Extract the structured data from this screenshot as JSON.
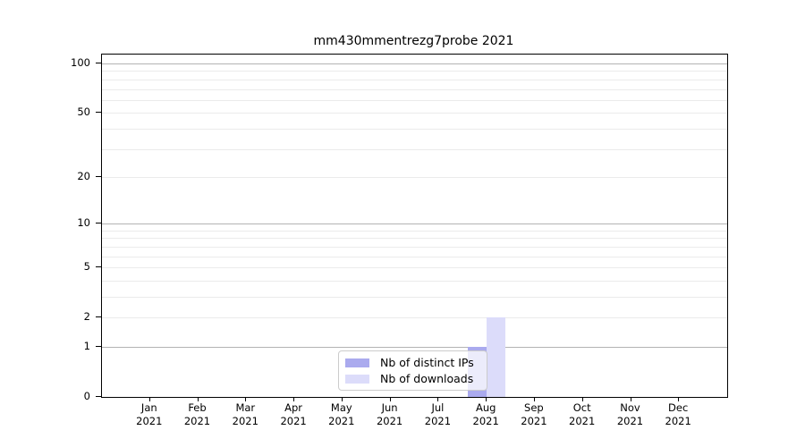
{
  "chart_data": {
    "type": "bar",
    "title": "mm430mmentrezg7probe 2021",
    "xlabel": "",
    "ylabel": "",
    "scale": "log10(1+y)",
    "ylim": [
      0,
      113.3
    ],
    "yticks": [
      0,
      1,
      2,
      5,
      10,
      20,
      50,
      100
    ],
    "grid": {
      "major": [
        1,
        10,
        100
      ],
      "minor": [
        2,
        3,
        4,
        5,
        6,
        7,
        8,
        9,
        20,
        30,
        40,
        50,
        60,
        70,
        80,
        90
      ]
    },
    "categories": [
      {
        "month": "Jan",
        "year": "2021"
      },
      {
        "month": "Feb",
        "year": "2021"
      },
      {
        "month": "Mar",
        "year": "2021"
      },
      {
        "month": "Apr",
        "year": "2021"
      },
      {
        "month": "May",
        "year": "2021"
      },
      {
        "month": "Jun",
        "year": "2021"
      },
      {
        "month": "Jul",
        "year": "2021"
      },
      {
        "month": "Aug",
        "year": "2021"
      },
      {
        "month": "Sep",
        "year": "2021"
      },
      {
        "month": "Oct",
        "year": "2021"
      },
      {
        "month": "Nov",
        "year": "2021"
      },
      {
        "month": "Dec",
        "year": "2021"
      }
    ],
    "series": [
      {
        "name": "Nb of distinct IPs",
        "color": "#aaaaee",
        "values": [
          0,
          0,
          0,
          0,
          0,
          0,
          0,
          1,
          0,
          0,
          0,
          0
        ]
      },
      {
        "name": "Nb of downloads",
        "color": "#dcdcfa",
        "values": [
          0,
          0,
          0,
          0,
          0,
          0,
          0,
          2,
          0,
          0,
          0,
          0
        ]
      }
    ],
    "legend_position": "lower center",
    "colors": {
      "grid_major": "#b3b3b3",
      "grid_minor": "#ebebeb",
      "axis": "#000000",
      "background": "#ffffff"
    }
  }
}
